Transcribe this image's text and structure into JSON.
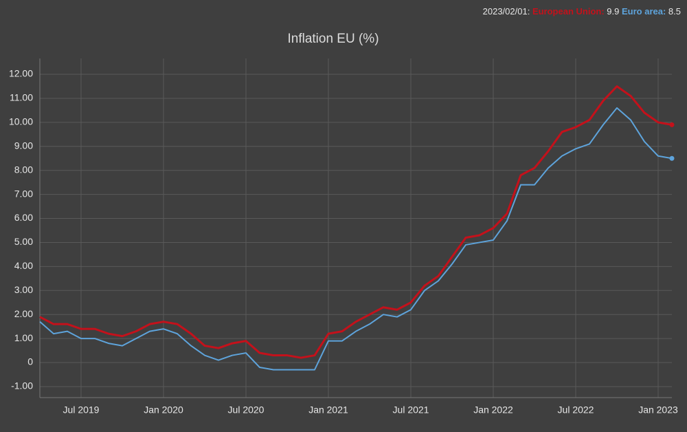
{
  "hover": {
    "date": "2023/02/01:",
    "labels": [
      "European Union:",
      "Euro area:"
    ]
  },
  "chart_data": {
    "type": "line",
    "title": "Inflation EU (%)",
    "x": [
      "2019-04",
      "2019-05",
      "2019-06",
      "2019-07",
      "2019-08",
      "2019-09",
      "2019-10",
      "2019-11",
      "2019-12",
      "2020-01",
      "2020-02",
      "2020-03",
      "2020-04",
      "2020-05",
      "2020-06",
      "2020-07",
      "2020-08",
      "2020-09",
      "2020-10",
      "2020-11",
      "2020-12",
      "2021-01",
      "2021-02",
      "2021-03",
      "2021-04",
      "2021-05",
      "2021-06",
      "2021-07",
      "2021-08",
      "2021-09",
      "2021-10",
      "2021-11",
      "2021-12",
      "2022-01",
      "2022-02",
      "2022-03",
      "2022-04",
      "2022-05",
      "2022-06",
      "2022-07",
      "2022-08",
      "2022-09",
      "2022-10",
      "2022-11",
      "2022-12",
      "2023-01",
      "2023-02"
    ],
    "series": [
      {
        "name": "European Union",
        "color": "#c4111b",
        "values": [
          1.9,
          1.6,
          1.6,
          1.4,
          1.4,
          1.2,
          1.1,
          1.3,
          1.6,
          1.7,
          1.6,
          1.2,
          0.7,
          0.6,
          0.8,
          0.9,
          0.4,
          0.3,
          0.3,
          0.2,
          0.3,
          1.2,
          1.3,
          1.7,
          2.0,
          2.3,
          2.2,
          2.5,
          3.2,
          3.6,
          4.4,
          5.2,
          5.3,
          5.6,
          6.2,
          7.8,
          8.1,
          8.8,
          9.6,
          9.8,
          10.1,
          10.9,
          11.5,
          11.1,
          10.4,
          10.0,
          9.9
        ]
      },
      {
        "name": "Euro area",
        "color": "#5ea4dc",
        "values": [
          1.7,
          1.2,
          1.3,
          1.0,
          1.0,
          0.8,
          0.7,
          1.0,
          1.3,
          1.4,
          1.2,
          0.7,
          0.3,
          0.1,
          0.3,
          0.4,
          -0.2,
          -0.3,
          -0.3,
          -0.3,
          -0.3,
          0.9,
          0.9,
          1.3,
          1.6,
          2.0,
          1.9,
          2.2,
          3.0,
          3.4,
          4.1,
          4.9,
          5.0,
          5.1,
          5.9,
          7.4,
          7.4,
          8.1,
          8.6,
          8.9,
          9.1,
          9.9,
          10.6,
          10.1,
          9.2,
          8.6,
          8.5
        ]
      }
    ],
    "xlim": [
      "2019-04",
      "2023-02"
    ],
    "xticks": [
      {
        "value": "2019-07",
        "label": "Jul 2019"
      },
      {
        "value": "2020-01",
        "label": "Jan 2020"
      },
      {
        "value": "2020-07",
        "label": "Jul 2020"
      },
      {
        "value": "2021-01",
        "label": "Jan 2021"
      },
      {
        "value": "2021-07",
        "label": "Jul 2021"
      },
      {
        "value": "2022-01",
        "label": "Jan 2022"
      },
      {
        "value": "2022-07",
        "label": "Jul 2022"
      },
      {
        "value": "2023-01",
        "label": "Jan 2023"
      }
    ],
    "ylim": [
      -1.46,
      12.66
    ],
    "yticks": [
      {
        "value": -1,
        "label": "-1.00"
      },
      0,
      {
        "value": 1,
        "label": "1.00"
      },
      {
        "value": 2,
        "label": "2.00"
      },
      {
        "value": 3,
        "label": "3.00"
      },
      {
        "value": 4,
        "label": "4.00"
      },
      {
        "value": 5,
        "label": "5.00"
      },
      {
        "value": 6,
        "label": "6.00"
      },
      {
        "value": 7,
        "label": "7.00"
      },
      {
        "value": 8,
        "label": "8.00"
      },
      {
        "value": 9,
        "label": "9.00"
      },
      {
        "value": 10,
        "label": "10.00"
      },
      {
        "value": 11,
        "label": "11.00"
      },
      {
        "value": 12,
        "label": "12.00"
      }
    ],
    "grid": true
  }
}
